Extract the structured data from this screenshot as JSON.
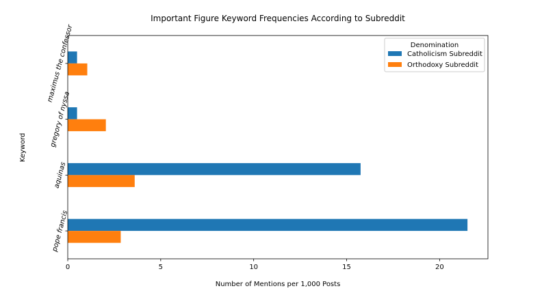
{
  "chart_data": {
    "type": "bar",
    "orientation": "horizontal",
    "title": "Important Figure Keyword Frequencies According to Subreddit",
    "xlabel": "Number of Mentions per 1,000 Posts",
    "ylabel": "Keyword",
    "categories": [
      "pope francis",
      "aquinas",
      "gregory of nyssa",
      "maximus the confessor"
    ],
    "series": [
      {
        "name": "Catholicism Subreddit",
        "color": "#1f77b4",
        "values": [
          21.5,
          15.75,
          0.5,
          0.5
        ]
      },
      {
        "name": "Orthodoxy Subreddit",
        "color": "#ff7f0e",
        "values": [
          2.85,
          3.6,
          2.05,
          1.05
        ]
      }
    ],
    "xlim": [
      0,
      22.6
    ],
    "xticks": [
      0,
      5,
      10,
      15,
      20
    ],
    "grid": false,
    "legend": {
      "title": "Denomination",
      "placement": "top-right"
    }
  }
}
